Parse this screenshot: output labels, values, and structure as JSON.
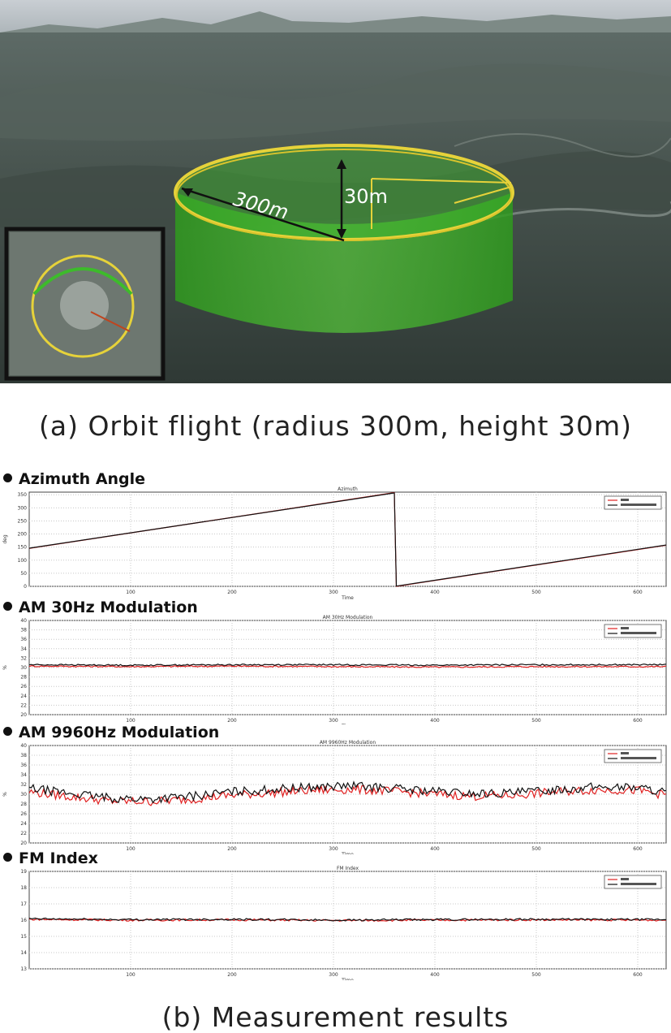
{
  "figure": {
    "scene": {
      "label_radius": "300m",
      "label_height": "30m"
    },
    "caption_a": "(a) Orbit flight (radius 300m, height 30m)",
    "caption_b": "(b) Measurement results",
    "colors": {
      "series_measured": "#e02020",
      "series_reference": "#111111",
      "cylinder": "#3dbb2b",
      "rim": "#e6d23a"
    }
  },
  "chart_data": [
    {
      "type": "line",
      "section_label": "Azimuth Angle",
      "title": "Azimuth",
      "xlabel": "Time",
      "ylabel": "deg",
      "xlim": [
        0,
        628
      ],
      "ylim": [
        0,
        360
      ],
      "xticks": [
        100,
        200,
        300,
        400,
        500,
        600
      ],
      "yticks": [
        0,
        50,
        100,
        150,
        200,
        250,
        300,
        350
      ],
      "legend_position": "top-right",
      "series": [
        {
          "name": "",
          "color": "#e02020",
          "x": [
            0,
            360,
            362,
            628
          ],
          "y": [
            145,
            358,
            0,
            157
          ]
        },
        {
          "name": "",
          "color": "#111111",
          "x": [
            0,
            360,
            362,
            628
          ],
          "y": [
            146,
            357,
            1,
            158
          ]
        }
      ]
    },
    {
      "type": "line",
      "section_label": "AM 30Hz Modulation",
      "title": "AM 30Hz Modulation",
      "xlabel": "Time",
      "ylabel": "%",
      "xlim": [
        0,
        628
      ],
      "ylim": [
        20,
        40
      ],
      "xticks": [
        100,
        200,
        300,
        400,
        500,
        600
      ],
      "yticks": [
        20,
        22,
        24,
        26,
        28,
        30,
        32,
        34,
        36,
        38,
        40
      ],
      "legend_position": "top-right",
      "series": [
        {
          "name": "",
          "color": "#e02020",
          "x": [
            0,
            100,
            200,
            300,
            400,
            500,
            628
          ],
          "y": [
            30.3,
            30.2,
            30.3,
            30.2,
            30.1,
            30.2,
            30.2
          ]
        },
        {
          "name": "",
          "color": "#111111",
          "x": [
            0,
            100,
            200,
            300,
            400,
            500,
            628
          ],
          "y": [
            30.6,
            30.5,
            30.6,
            30.6,
            30.5,
            30.6,
            30.6
          ]
        }
      ]
    },
    {
      "type": "line",
      "section_label": "AM 9960Hz Modulation",
      "title": "AM 9960Hz Modulation",
      "xlabel": "Time",
      "ylabel": "%",
      "xlim": [
        0,
        628
      ],
      "ylim": [
        20,
        40
      ],
      "xticks": [
        100,
        200,
        300,
        400,
        500,
        600
      ],
      "yticks": [
        20,
        22,
        24,
        26,
        28,
        30,
        32,
        34,
        36,
        38,
        40
      ],
      "legend_position": "top-right",
      "series": [
        {
          "name": "",
          "color": "#e02020",
          "x": [
            0,
            40,
            80,
            120,
            160,
            200,
            240,
            280,
            320,
            360,
            400,
            440,
            480,
            520,
            560,
            600,
            628
          ],
          "y": [
            30.5,
            29.5,
            28.6,
            28.5,
            29.0,
            29.8,
            30.3,
            30.8,
            31.0,
            30.6,
            30.0,
            29.6,
            29.8,
            30.5,
            30.9,
            30.8,
            29.8
          ]
        },
        {
          "name": "",
          "color": "#111111",
          "x": [
            0,
            40,
            80,
            120,
            160,
            200,
            240,
            280,
            320,
            360,
            400,
            440,
            480,
            520,
            560,
            600,
            628
          ],
          "y": [
            31.2,
            30.2,
            29.2,
            29.0,
            29.6,
            30.5,
            31.0,
            31.5,
            31.7,
            31.2,
            30.6,
            30.1,
            30.3,
            31.0,
            31.5,
            31.4,
            30.4
          ]
        }
      ]
    },
    {
      "type": "line",
      "section_label": "FM Index",
      "title": "FM Index",
      "xlabel": "Time",
      "ylabel": "",
      "xlim": [
        0,
        628
      ],
      "ylim": [
        13,
        19
      ],
      "xticks": [
        100,
        200,
        300,
        400,
        500,
        600
      ],
      "yticks": [
        13,
        14,
        15,
        16,
        17,
        18,
        19
      ],
      "legend_position": "top-right",
      "series": [
        {
          "name": "",
          "color": "#e02020",
          "x": [
            0,
            100,
            200,
            300,
            400,
            500,
            628
          ],
          "y": [
            16.05,
            16.0,
            16.02,
            15.98,
            16.0,
            16.02,
            16.0
          ]
        },
        {
          "name": "",
          "color": "#111111",
          "x": [
            0,
            100,
            200,
            300,
            400,
            500,
            628
          ],
          "y": [
            16.08,
            16.03,
            16.05,
            16.0,
            16.03,
            16.05,
            16.03
          ]
        }
      ]
    }
  ]
}
